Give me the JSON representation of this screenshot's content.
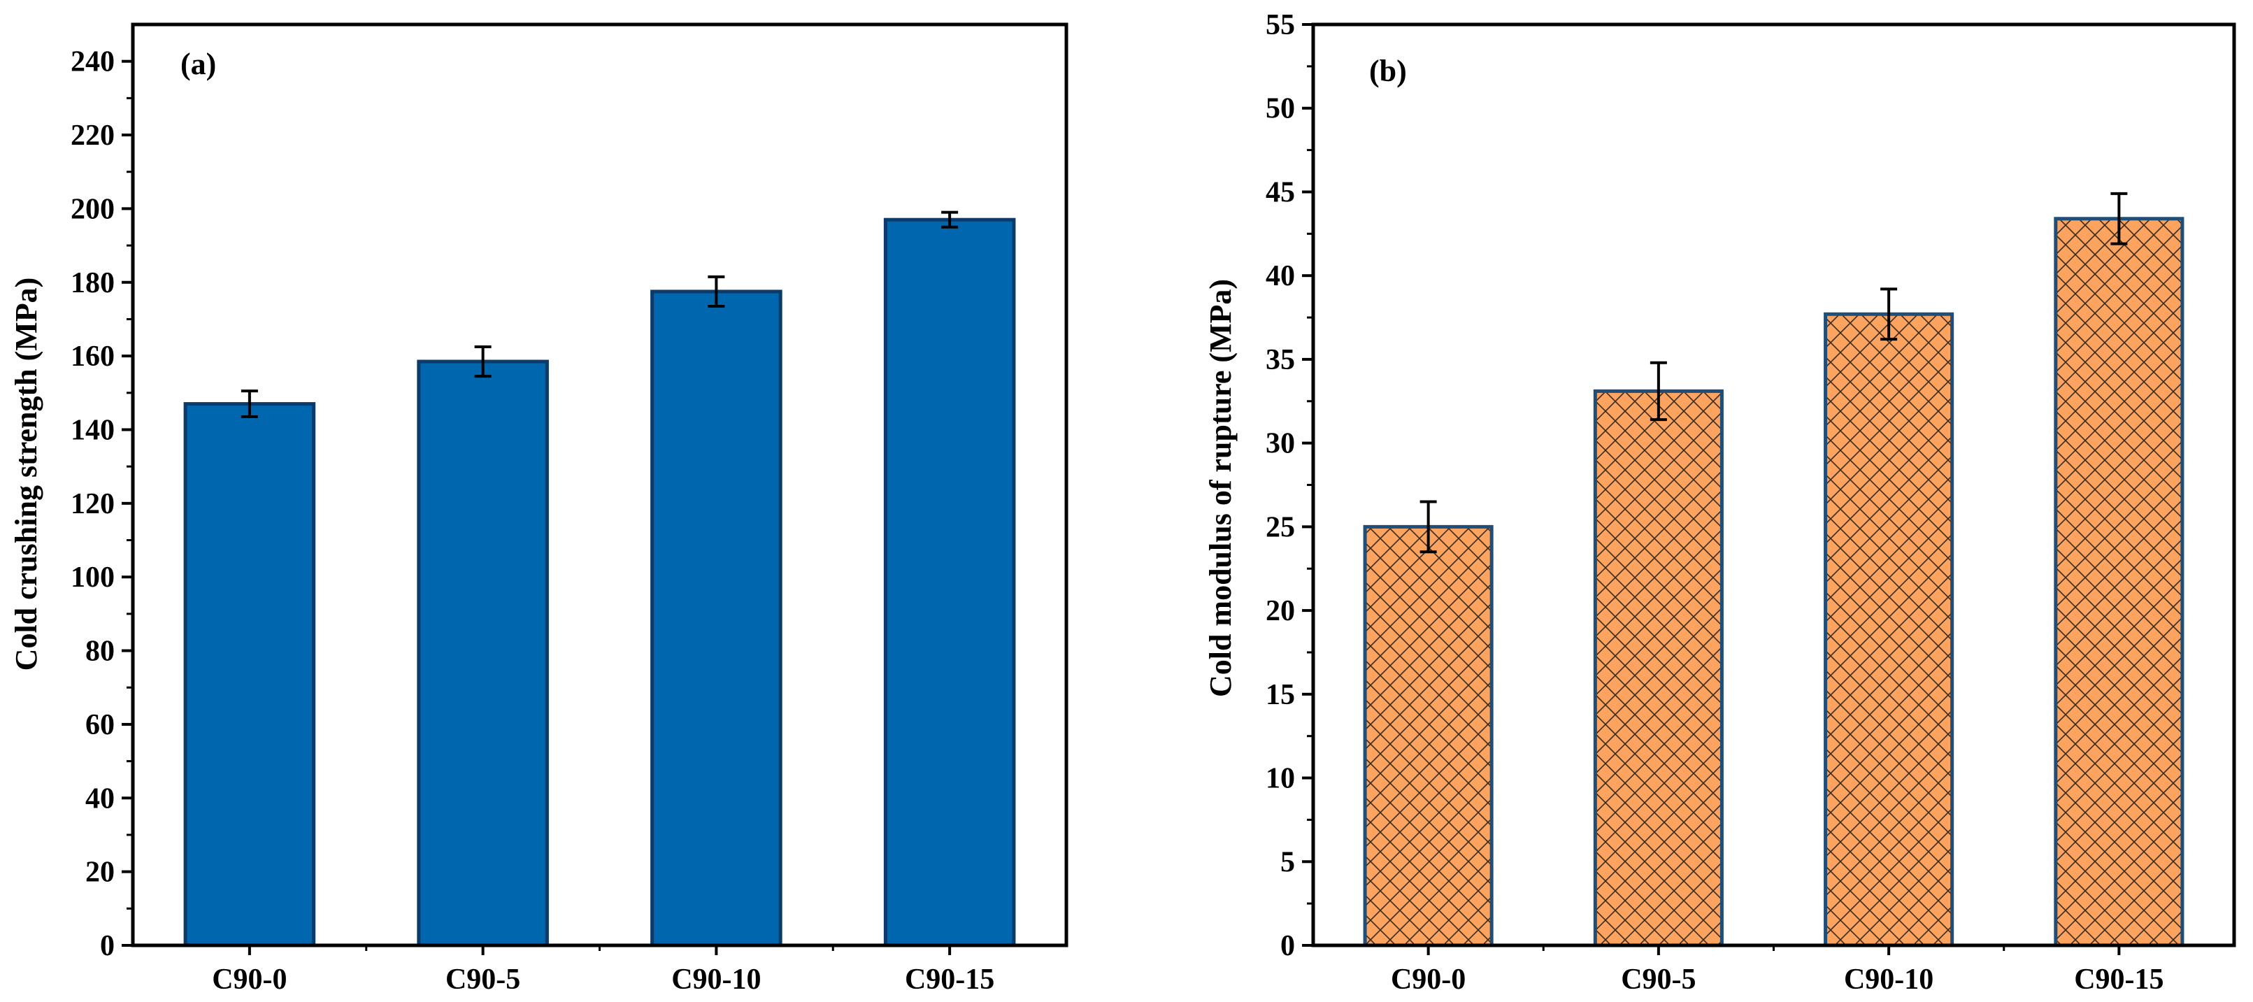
{
  "figure": {
    "panels": [
      "(a)",
      "(b)"
    ]
  },
  "colors": {
    "panel_a_fill": "#0066AD",
    "panel_a_edge": "#0b3a6b",
    "panel_b_fill": "#FBA35F",
    "panel_b_edge": "#1f4e79",
    "hatch": "#3a2a1a",
    "axis": "#000000"
  },
  "chart_data": [
    {
      "type": "bar",
      "panel_label": "(a)",
      "title": "",
      "xlabel": "",
      "ylabel": "Cold crushing strength (MPa)",
      "categories": [
        "C90-0",
        "C90-5",
        "C90-10",
        "C90-15"
      ],
      "values": [
        147,
        158.5,
        177.5,
        197
      ],
      "errors": [
        3.5,
        4,
        4,
        2
      ],
      "ylim": [
        0,
        250
      ],
      "yticks": [
        0,
        20,
        40,
        60,
        80,
        100,
        120,
        140,
        160,
        180,
        200,
        220,
        240
      ],
      "pattern": "solid",
      "grid": false
    },
    {
      "type": "bar",
      "panel_label": "(b)",
      "title": "",
      "xlabel": "",
      "ylabel": "Cold modulus of rupture (MPa)",
      "categories": [
        "C90-0",
        "C90-5",
        "C90-10",
        "C90-15"
      ],
      "values": [
        25,
        33.1,
        37.7,
        43.4
      ],
      "errors": [
        1.5,
        1.7,
        1.5,
        1.5
      ],
      "ylim": [
        0,
        55
      ],
      "yticks": [
        0,
        5,
        10,
        15,
        20,
        25,
        30,
        35,
        40,
        45,
        50,
        55
      ],
      "pattern": "crosshatch",
      "grid": false
    }
  ]
}
